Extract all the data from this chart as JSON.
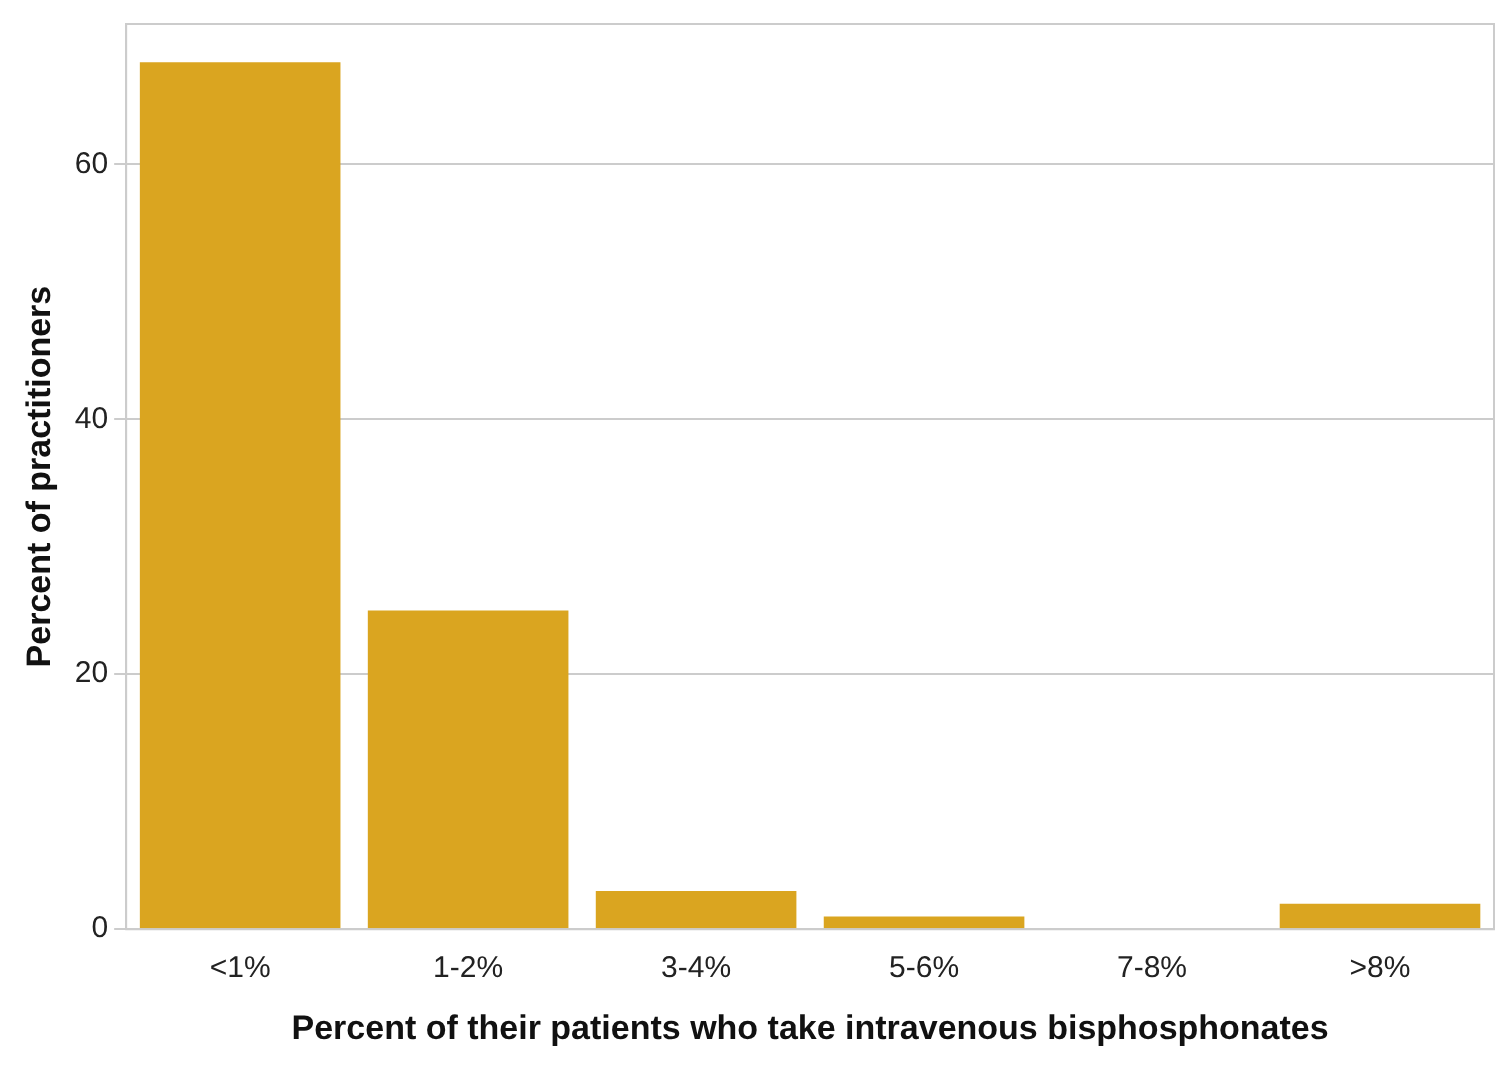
{
  "chart_data": {
    "type": "bar",
    "xlabel": "Percent of their patients who take intravenous bisphosphonates",
    "ylabel": "Percent of practitioners",
    "categories": [
      "<1%",
      "1-2%",
      "3-4%",
      "5-6%",
      "7-8%",
      ">8%"
    ],
    "values": [
      68,
      25,
      3,
      1,
      0,
      2
    ],
    "color": "#daa520",
    "ylim": [
      0,
      71
    ],
    "yticks": [
      0,
      20,
      40,
      60
    ],
    "grid": "y"
  }
}
